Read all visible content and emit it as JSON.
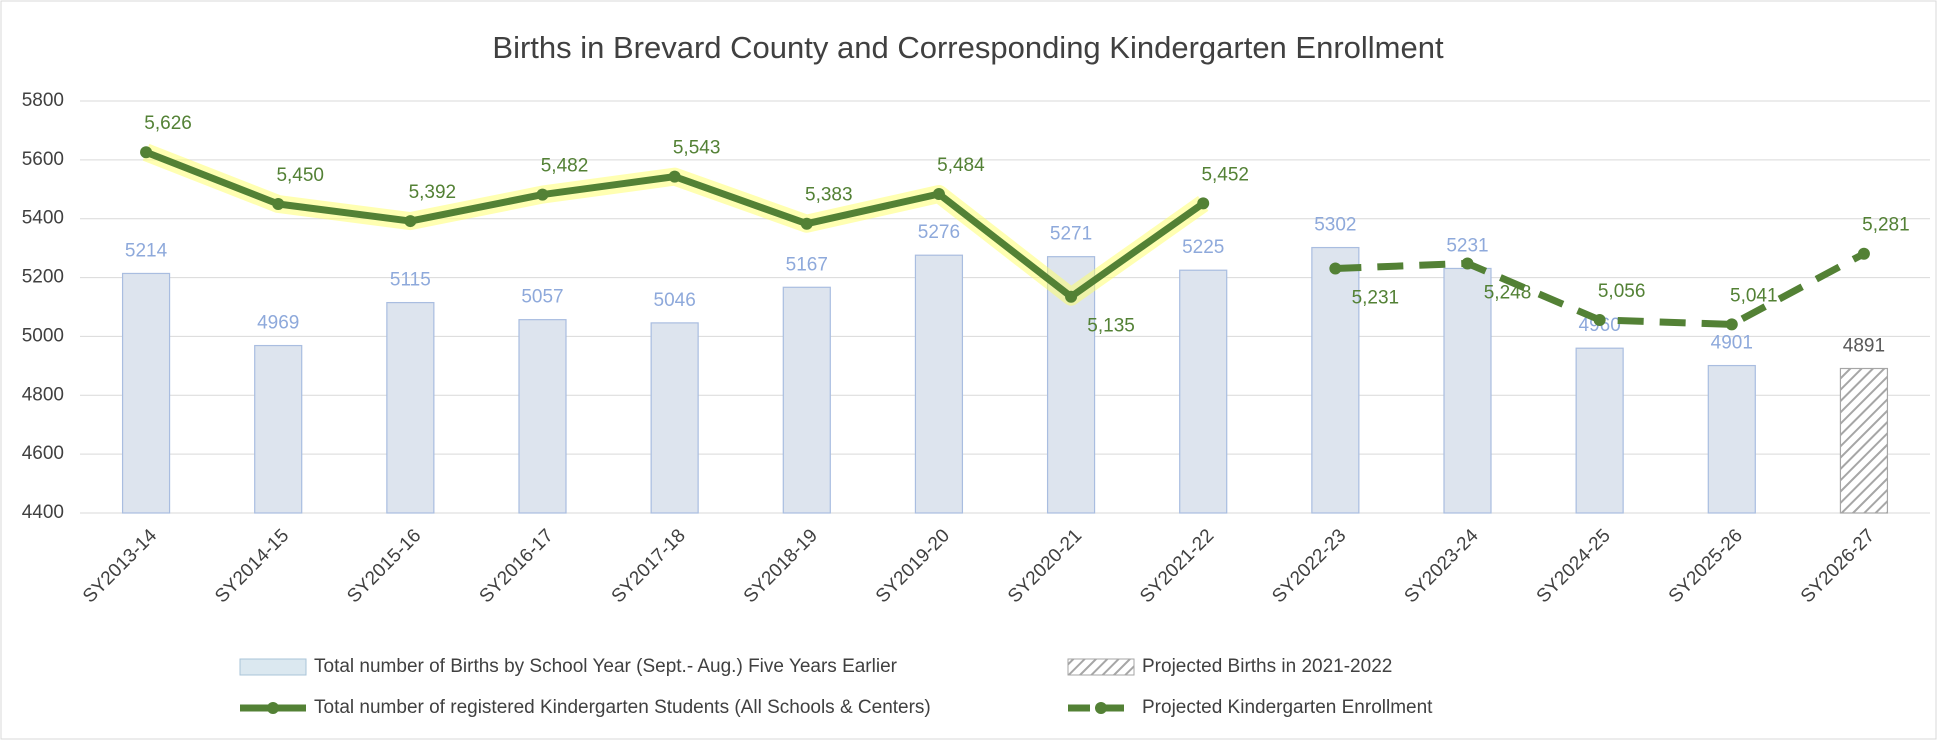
{
  "chart_data": {
    "type": "bar-line",
    "title": "Births in Brevard County and Corresponding Kindergarten Enrollment",
    "categories": [
      "SY2013-14",
      "SY2014-15",
      "SY2015-16",
      "SY2016-17",
      "SY2017-18",
      "SY2018-19",
      "SY2019-20",
      "SY2020-21",
      "SY2021-22",
      "SY2022-23",
      "SY2023-24",
      "SY2024-25",
      "SY2025-26",
      "SY2026-27"
    ],
    "series": [
      {
        "name": "Total number of Births by School Year (Sept.- Aug.) Five Years Earlier",
        "type": "bar",
        "color": "#dde4ee",
        "values": [
          5214,
          4969,
          5115,
          5057,
          5046,
          5167,
          5276,
          5271,
          5225,
          5302,
          5231,
          4960,
          4901,
          null
        ]
      },
      {
        "name": "Projected Births in 2021-2022",
        "type": "bar",
        "pattern": "hatch",
        "color": "#a6a6a6",
        "values": [
          null,
          null,
          null,
          null,
          null,
          null,
          null,
          null,
          null,
          null,
          null,
          null,
          null,
          4891
        ]
      },
      {
        "name": "Total number of registered Kindergarten Students (All Schools & Centers)",
        "type": "line",
        "color": "#538135",
        "values": [
          5626,
          5450,
          5392,
          5482,
          5543,
          5383,
          5484,
          5135,
          5452,
          null,
          null,
          null,
          null,
          null
        ],
        "value_labels": [
          "5,626",
          "5,450",
          "5,392",
          "5,482",
          "5,543",
          "5,383",
          "5,484",
          "5,135",
          "5,452",
          null,
          null,
          null,
          null,
          null
        ]
      },
      {
        "name": "Projected Kindergarten Enrollment",
        "type": "line",
        "dashed": true,
        "color": "#538135",
        "values": [
          null,
          null,
          null,
          null,
          null,
          null,
          null,
          null,
          null,
          5231,
          5248,
          5056,
          5041,
          5281
        ],
        "value_labels": [
          null,
          null,
          null,
          null,
          null,
          null,
          null,
          null,
          null,
          "5,231",
          "5,248",
          "5,056",
          "5,041",
          "5,281"
        ]
      }
    ],
    "ylim": [
      4400,
      5800
    ],
    "yticks": [
      4400,
      4600,
      4800,
      5000,
      5200,
      5400,
      5600,
      5800
    ],
    "grid": true,
    "legend": "bottom"
  }
}
